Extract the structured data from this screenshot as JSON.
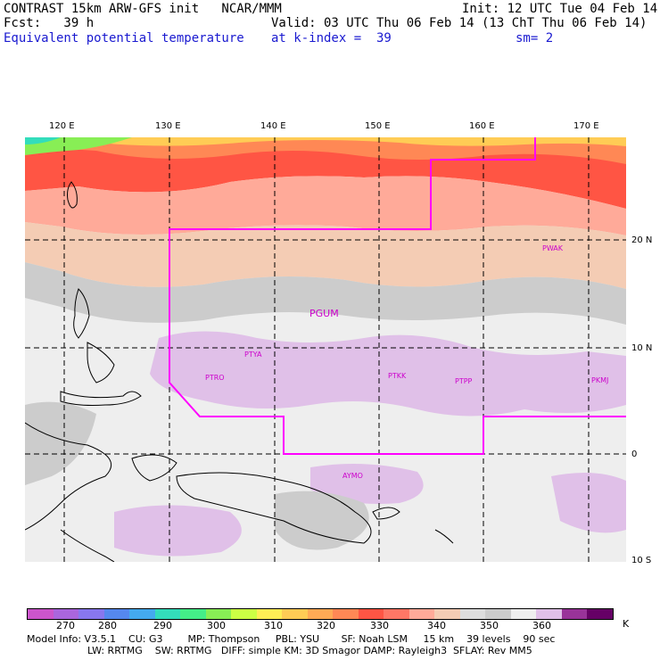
{
  "header": {
    "line1_left": "CONTRAST 15km ARW-GFS init   NCAR/MMM",
    "line1_right": "Init: 12 UTC Tue 04 Feb 14",
    "line2_left": "Fcst:   39 h",
    "line2_right": "Valid: 03 UTC Thu 06 Feb 14 (13 ChT Thu 06 Feb 14)",
    "line3_left": "Equivalent potential temperature",
    "line3_mid": "at k-index =  39",
    "line3_right": "sm= 2"
  },
  "map": {
    "lon_labels": [
      "120 E",
      "130 E",
      "140 E",
      "150 E",
      "160 E",
      "170 E"
    ],
    "lat_labels": [
      "20 N",
      "10 N",
      "0",
      "10 S"
    ],
    "stations": [
      "PGUM",
      "PTYA",
      "PTRO",
      "PTKK",
      "PTPP",
      "PKMJ",
      "PWAK",
      "AYMO"
    ]
  },
  "colorbar": {
    "colors": [
      "#cc55cc",
      "#aa66dd",
      "#8877ee",
      "#5588ee",
      "#44aaee",
      "#33ddbb",
      "#44ee88",
      "#88ee55",
      "#ccff44",
      "#ffee55",
      "#ffcc55",
      "#ffaa55",
      "#ff8855",
      "#ff5544",
      "#ff7766",
      "#ffaa99",
      "#f4ccb4",
      "#dddddd",
      "#cccccc",
      "#eeeeee",
      "#e0c0e8",
      "#993399",
      "#660066"
    ],
    "ticks": [
      "270",
      "280",
      "290",
      "300",
      "310",
      "320",
      "330",
      "340",
      "350",
      "360"
    ],
    "unit": "K"
  },
  "model_info": {
    "line1": "Model Info: V3.5.1    CU: G3        MP: Thompson     PBL: YSU       SF: Noah LSM     15 km    39 levels    90 sec",
    "line2": "LW: RRTMG    SW: RRTMG   DIFF: simple KM: 3D Smagor DAMP: Rayleigh3  SFLAY: Rev MM5"
  }
}
